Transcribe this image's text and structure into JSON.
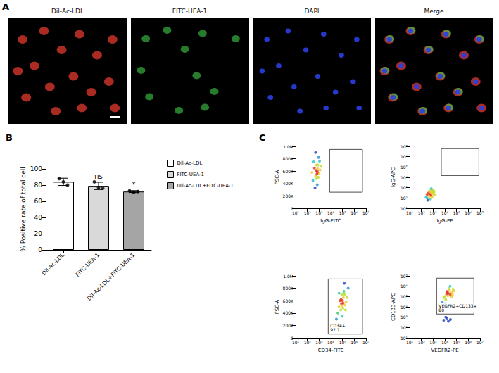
{
  "panel_a": {
    "panel_label": "A",
    "images": [
      {
        "title": "Dil-Ac-LDL",
        "color": "#e23a2e"
      },
      {
        "title": "FITC-UEA-1",
        "color": "#3fcf4a"
      },
      {
        "title": "DAPI",
        "color": "#2a3fe0"
      },
      {
        "title": "Merge"
      }
    ]
  },
  "chart_data": [
    {
      "panel_label": "B",
      "type": "bar",
      "categories": [
        "Dil-Ac-LDL",
        "FITC-UEA-1",
        "Dil-Ac-LDL+FITC-UEA-1"
      ],
      "values": [
        84,
        79,
        72
      ],
      "errors": [
        4.5,
        4.5,
        1.2
      ],
      "points": [
        [
          88,
          84,
          80
        ],
        [
          84,
          77,
          76
        ],
        [
          73,
          71,
          72
        ]
      ],
      "significance": [
        null,
        "ns",
        "*"
      ],
      "colors": [
        "#ffffff",
        "#d9d9d9",
        "#a5a5a5"
      ],
      "ylabel": "% Positive rate of total cell",
      "ylim": [
        0,
        100
      ],
      "yticks": [
        0,
        20,
        40,
        60,
        80,
        100
      ],
      "legend": "right"
    },
    {
      "panel_label": "C",
      "type": "scatter",
      "xlabel": "IgG-FITC",
      "ylabel": "FSC-A",
      "log": "x",
      "xlim": [
        10,
        10000000
      ],
      "xticks": [
        {
          "value": 10,
          "label": "10¹"
        },
        {
          "value": 100,
          "label": "10²"
        },
        {
          "value": 1000,
          "label": "10³"
        },
        {
          "value": 10000,
          "label": "10⁴"
        },
        {
          "value": 100000,
          "label": "10⁵"
        },
        {
          "value": 1000000,
          "label": "10⁶"
        },
        {
          "value": 10000000,
          "label": "10⁷"
        }
      ],
      "ylim": [
        0,
        1000000
      ],
      "yticks": [
        0,
        {
          "value": 200000,
          "label": "200K"
        },
        {
          "value": 400000,
          "label": "400K"
        },
        {
          "value": 600000,
          "label": "600K"
        },
        {
          "value": 800000,
          "label": "800K"
        },
        {
          "value": 1000000,
          "label": "1.0M"
        }
      ],
      "points": [
        [
          300,
          450000
        ],
        [
          500,
          520000
        ],
        [
          700,
          600000
        ],
        [
          400,
          650000
        ],
        [
          800,
          700000
        ],
        [
          1000,
          560000
        ],
        [
          600,
          480000
        ],
        [
          350,
          750000
        ],
        [
          900,
          820000
        ],
        [
          1200,
          620000
        ],
        [
          500,
          900000
        ],
        [
          700,
          380000
        ],
        [
          450,
          330000
        ],
        [
          1500,
          680000
        ],
        [
          650,
          550000
        ],
        [
          550,
          610000
        ],
        [
          750,
          640000
        ],
        [
          250,
          580000
        ],
        [
          1100,
          760000
        ],
        [
          850,
          500000
        ],
        [
          600,
          700000
        ],
        [
          700,
          580000
        ]
      ],
      "gate": {
        "x": [
          8000,
          5000000
        ],
        "y": [
          260000,
          950000
        ]
      }
    },
    {
      "type": "scatter",
      "xlabel": "IgG-PE",
      "ylabel": "IgG-APC",
      "log": true,
      "xlim": [
        10,
        10000000
      ],
      "xticks": [
        {
          "value": 10,
          "label": "10¹"
        },
        {
          "value": 100,
          "label": "10²"
        },
        {
          "value": 1000,
          "label": "10³"
        },
        {
          "value": 10000,
          "label": "10⁴"
        },
        {
          "value": 100000,
          "label": "10⁵"
        },
        {
          "value": 1000000,
          "label": "10⁶"
        },
        {
          "value": 10000000,
          "label": "10⁷"
        }
      ],
      "ylim": [
        10,
        10000000
      ],
      "yticks": [
        {
          "value": 10,
          "label": "10¹"
        },
        {
          "value": 100,
          "label": "10²"
        },
        {
          "value": 1000,
          "label": "10³"
        },
        {
          "value": 10000,
          "label": "10⁴"
        },
        {
          "value": 100000,
          "label": "10⁵"
        },
        {
          "value": 1000000,
          "label": "10⁶"
        },
        {
          "value": 10000000,
          "label": "10⁷"
        }
      ],
      "points": [
        [
          300,
          100
        ],
        [
          500,
          200
        ],
        [
          700,
          150
        ],
        [
          400,
          300
        ],
        [
          900,
          400
        ],
        [
          600,
          80
        ],
        [
          1000,
          250
        ],
        [
          350,
          60
        ],
        [
          800,
          600
        ],
        [
          1200,
          350
        ],
        [
          500,
          500
        ],
        [
          250,
          120
        ],
        [
          1500,
          200
        ],
        [
          650,
          180
        ],
        [
          550,
          250
        ],
        [
          750,
          300
        ],
        [
          450,
          150
        ],
        [
          850,
          120
        ],
        [
          1100,
          500
        ],
        [
          300,
          220
        ],
        [
          700,
          800
        ],
        [
          600,
          400
        ]
      ],
      "gate": {
        "x": [
          5000,
          8000000
        ],
        "y": [
          15000,
          6000000
        ]
      }
    },
    {
      "type": "scatter",
      "xlabel": "CD34-FITC",
      "ylabel": "FSC-A",
      "log": "x",
      "xlim": [
        10,
        10000000
      ],
      "xticks": [
        {
          "value": 10,
          "label": "10¹"
        },
        {
          "value": 100,
          "label": "10²"
        },
        {
          "value": 1000,
          "label": "10³"
        },
        {
          "value": 10000,
          "label": "10⁴"
        },
        {
          "value": 100000,
          "label": "10⁵"
        },
        {
          "value": 1000000,
          "label": "10⁶"
        },
        {
          "value": 10000000,
          "label": "10⁷"
        }
      ],
      "ylim": [
        0,
        1000000
      ],
      "yticks": [
        0,
        {
          "value": 200000,
          "label": "200K"
        },
        {
          "value": 400000,
          "label": "400K"
        },
        {
          "value": 600000,
          "label": "600K"
        },
        {
          "value": 800000,
          "label": "800K"
        },
        {
          "value": 1000000,
          "label": "1.0M"
        }
      ],
      "points": [
        [
          50000,
          500000
        ],
        [
          80000,
          550000
        ],
        [
          100000,
          600000
        ],
        [
          120000,
          650000
        ],
        [
          70000,
          450000
        ],
        [
          150000,
          700000
        ],
        [
          90000,
          520000
        ],
        [
          60000,
          600000
        ],
        [
          200000,
          580000
        ],
        [
          110000,
          480000
        ],
        [
          40000,
          400000
        ],
        [
          130000,
          750000
        ],
        [
          250000,
          650000
        ],
        [
          85000,
          700000
        ],
        [
          95000,
          350000
        ],
        [
          300000,
          800000
        ],
        [
          30000,
          300000
        ],
        [
          160000,
          530000
        ],
        [
          75000,
          620000
        ],
        [
          110000,
          560000
        ],
        [
          180000,
          450000
        ],
        [
          50000,
          720000
        ],
        [
          140000,
          880000
        ],
        [
          65000,
          200000
        ]
      ],
      "gate": {
        "x": [
          6000,
          5000000
        ],
        "y": [
          60000,
          950000
        ],
        "label": "CD34+",
        "percent": 97.7
      }
    },
    {
      "type": "scatter",
      "xlabel": "VEGFR2-PE",
      "ylabel": "CD133-APC",
      "log": true,
      "xlim": [
        10,
        10000000
      ],
      "xticks": [
        {
          "value": 10,
          "label": "10¹"
        },
        {
          "value": 100,
          "label": "10²"
        },
        {
          "value": 1000,
          "label": "10³"
        },
        {
          "value": 10000,
          "label": "10⁴"
        },
        {
          "value": 100000,
          "label": "10⁵"
        },
        {
          "value": 1000000,
          "label": "10⁶"
        },
        {
          "value": 10000000,
          "label": "10⁷"
        }
      ],
      "ylim": [
        10,
        10000000
      ],
      "yticks": [
        {
          "value": 10,
          "label": "10¹"
        },
        {
          "value": 100,
          "label": "10²"
        },
        {
          "value": 1000,
          "label": "10³"
        },
        {
          "value": 10000,
          "label": "10⁴"
        },
        {
          "value": 100000,
          "label": "10⁵"
        },
        {
          "value": 1000000,
          "label": "10⁶"
        },
        {
          "value": 10000000,
          "label": "10⁷"
        }
      ],
      "points": [
        [
          10000,
          100000
        ],
        [
          20000,
          200000
        ],
        [
          15000,
          300000
        ],
        [
          30000,
          150000
        ],
        [
          8000,
          80000
        ],
        [
          25000,
          400000
        ],
        [
          12000,
          50000
        ],
        [
          40000,
          250000
        ],
        [
          18000,
          120000
        ],
        [
          50000,
          500000
        ],
        [
          6000,
          30000
        ],
        [
          22000,
          600000
        ],
        [
          35000,
          90000
        ],
        [
          14000,
          180000
        ],
        [
          9000,
          10000
        ],
        [
          60000,
          350000
        ],
        [
          28000,
          1000000
        ],
        [
          11000,
          20000
        ],
        [
          17000,
          250000
        ],
        [
          45000,
          150000
        ],
        [
          8000,
          500
        ],
        [
          15000,
          800
        ],
        [
          20000,
          400
        ],
        [
          12000,
          1000
        ],
        [
          30000,
          600
        ]
      ],
      "gate": {
        "x": [
          2000,
          3000000
        ],
        "y": [
          2000,
          6000000
        ],
        "label": "VEGFR2+CD133+",
        "percent": 80.0
      }
    }
  ]
}
